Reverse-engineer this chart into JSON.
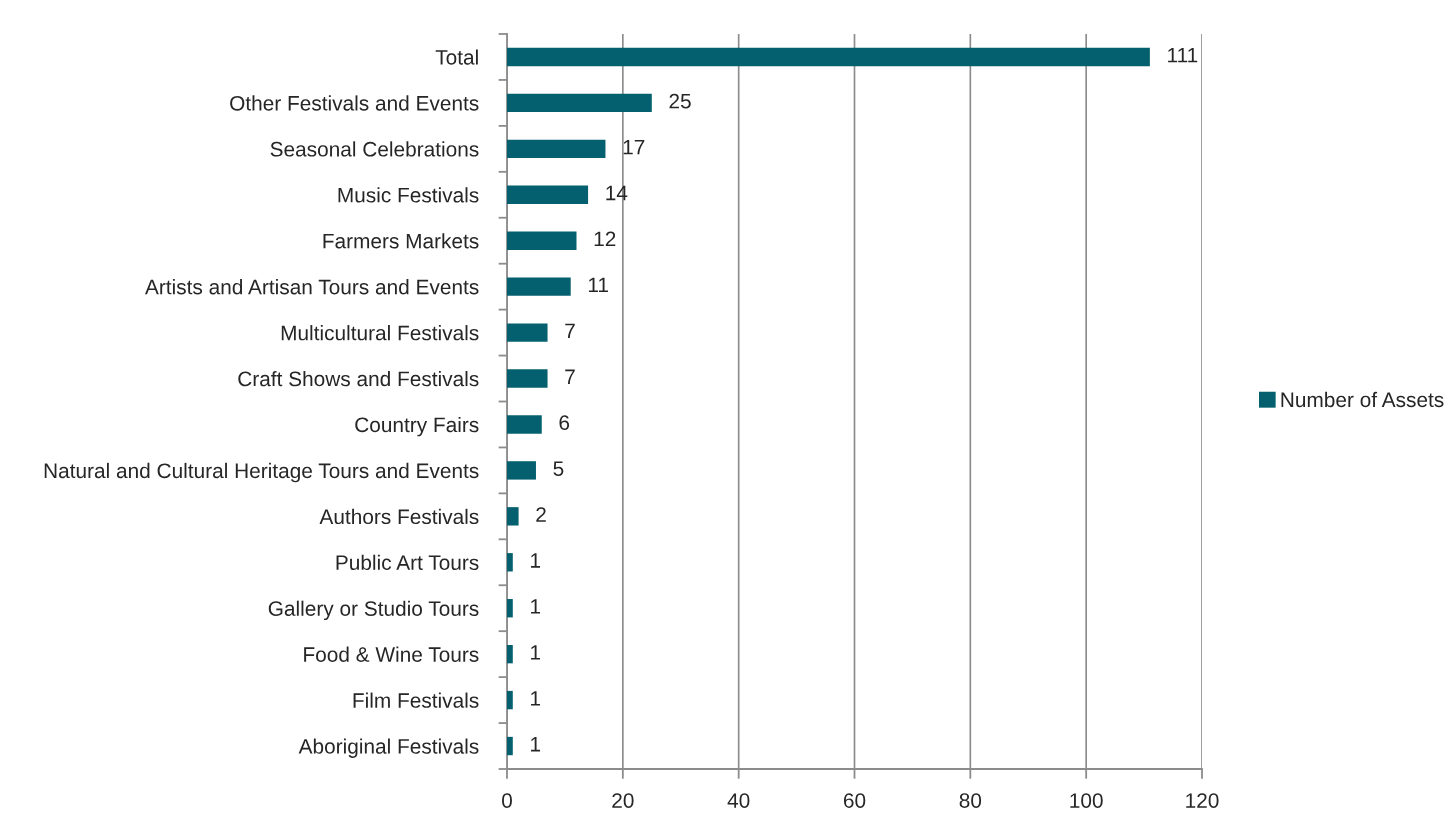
{
  "chart_data": {
    "type": "bar",
    "orientation": "horizontal",
    "categories": [
      "Total",
      "Other Festivals and Events",
      "Seasonal Celebrations",
      "Music Festivals",
      "Farmers Markets",
      "Artists and Artisan Tours and Events",
      "Multicultural Festivals",
      "Craft Shows and Festivals",
      "Country Fairs",
      "Natural and Cultural Heritage Tours and Events",
      "Authors Festivals",
      "Public Art Tours",
      "Gallery or Studio Tours",
      "Food & Wine Tours",
      "Film Festivals",
      "Aboriginal Festivals"
    ],
    "series": [
      {
        "name": "Number of Assets",
        "color": "#04606e",
        "values": [
          111,
          25,
          17,
          14,
          12,
          11,
          7,
          7,
          6,
          5,
          2,
          1,
          1,
          1,
          1,
          1
        ]
      }
    ],
    "xlim": [
      0,
      120
    ],
    "xticks": [
      0,
      20,
      40,
      60,
      80,
      100,
      120
    ],
    "grid": "x",
    "legend": "right",
    "data_labels": true
  }
}
